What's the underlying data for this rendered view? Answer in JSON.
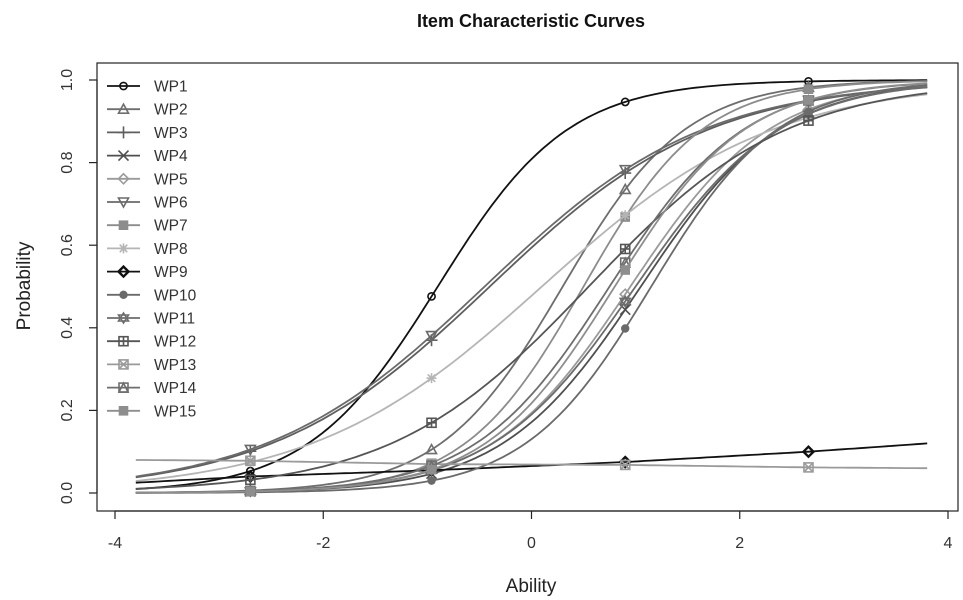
{
  "chart_data": {
    "type": "line",
    "title": "Item Characteristic Curves",
    "xlabel": "Ability",
    "ylabel": "Probability",
    "xlim": [
      -4,
      4
    ],
    "ylim": [
      0,
      1
    ],
    "x_ticks": [
      -4,
      -2,
      0,
      2,
      4
    ],
    "y_ticks": [
      0.0,
      0.2,
      0.4,
      0.6,
      0.8,
      1.0
    ],
    "x_tick_labels": [
      "-4",
      "-2",
      "0",
      "2",
      "4"
    ],
    "y_tick_labels": [
      "0.0",
      "0.2",
      "0.4",
      "0.6",
      "0.8",
      "1.0"
    ],
    "x_range": [
      -3.8,
      3.8
    ],
    "marker_x": [
      -2.7,
      -0.96,
      0.9,
      2.66
    ],
    "grid": false,
    "legend_position": "top-left",
    "series": [
      {
        "name": "WP1",
        "color": "#111111",
        "marker": "circle",
        "a": 1.6,
        "b": -0.9,
        "c": 0.0
      },
      {
        "name": "WP2",
        "color": "#6e6e6e",
        "marker": "triangle",
        "a": 1.7,
        "b": 0.3,
        "c": 0.0
      },
      {
        "name": "WP3",
        "color": "#5e5e5e",
        "marker": "plus",
        "a": 0.95,
        "b": -0.4,
        "c": 0.0
      },
      {
        "name": "WP4",
        "color": "#4f4f4f",
        "marker": "x",
        "a": 1.5,
        "b": 1.05,
        "c": 0.0
      },
      {
        "name": "WP5",
        "color": "#9a9a9a",
        "marker": "diamond",
        "a": 1.5,
        "b": 0.95,
        "c": 0.0
      },
      {
        "name": "WP6",
        "color": "#6a6a6a",
        "marker": "triangle-down",
        "a": 0.95,
        "b": -0.45,
        "c": 0.0
      },
      {
        "name": "WP7",
        "color": "#8c8c8c",
        "marker": "square-filled",
        "a": 1.75,
        "b": 0.5,
        "c": 0.0
      },
      {
        "name": "WP8",
        "color": "#b5b5b5",
        "marker": "asterisk",
        "a": 0.9,
        "b": 0.1,
        "c": 0.0
      },
      {
        "name": "WP9",
        "color": "#111111",
        "marker": "diamond-bold",
        "points": [
          [
            -3.8,
            0.025
          ],
          [
            -2.7,
            0.04
          ],
          [
            -0.96,
            0.055
          ],
          [
            0.9,
            0.075
          ],
          [
            2.66,
            0.1
          ],
          [
            3.8,
            0.12
          ]
        ]
      },
      {
        "name": "WP10",
        "color": "#6a6a6a",
        "marker": "dot",
        "a": 1.65,
        "b": 1.15,
        "c": 0.0
      },
      {
        "name": "WP11",
        "color": "#6c6c6c",
        "marker": "star-of-david",
        "a": 1.45,
        "b": 1.0,
        "c": 0.0
      },
      {
        "name": "WP12",
        "color": "#555555",
        "marker": "square-plus",
        "a": 1.05,
        "b": 0.55,
        "c": 0.0
      },
      {
        "name": "WP13",
        "color": "#9a9a9a",
        "marker": "square-x",
        "points": [
          [
            -3.8,
            0.08
          ],
          [
            -2.7,
            0.078
          ],
          [
            -0.96,
            0.07
          ],
          [
            0.9,
            0.068
          ],
          [
            2.66,
            0.062
          ],
          [
            3.8,
            0.06
          ]
        ]
      },
      {
        "name": "WP14",
        "color": "#6e6e6e",
        "marker": "square-triangle",
        "a": 1.55,
        "b": 0.75,
        "c": 0.0
      },
      {
        "name": "WP15",
        "color": "#8e8e8e",
        "marker": "square-filled",
        "a": 1.6,
        "b": 0.8,
        "c": 0.0
      }
    ]
  }
}
